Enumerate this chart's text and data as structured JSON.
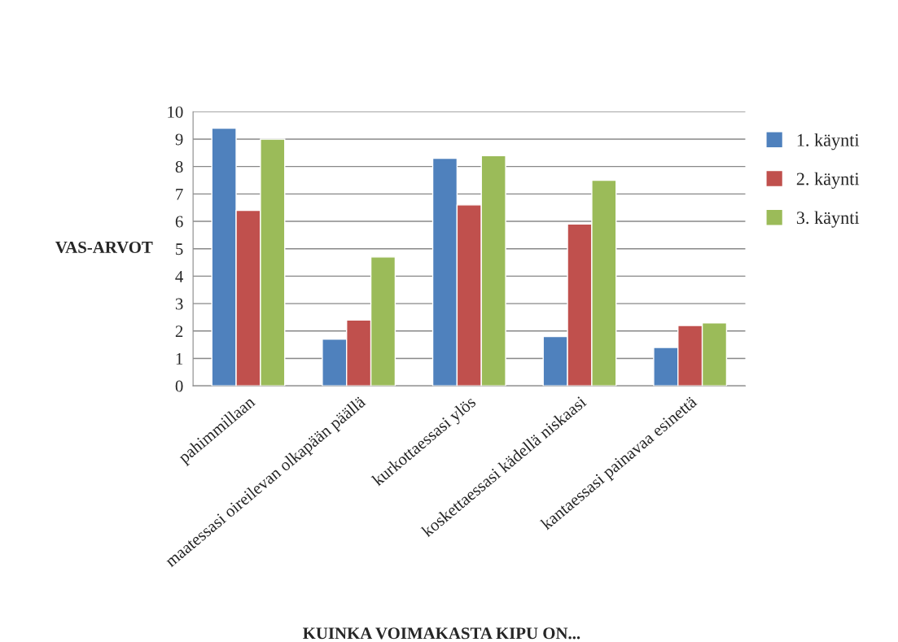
{
  "chart_data": {
    "type": "bar",
    "xlabel": "KUINKA VOIMAKASTA KIPU ON...",
    "ylabel": "VAS-ARVOT",
    "categories": [
      "pahimmillaan",
      "maatessasi oireilevan olkapään päällä",
      "kurkottaessasi ylös",
      "koskettaessasi kädellä niskaasi",
      "kantaessasi painavaa esinettä"
    ],
    "series": [
      {
        "name": "1. käynti",
        "color": "#4f81bd",
        "values": [
          9.4,
          1.7,
          8.3,
          1.8,
          1.4
        ]
      },
      {
        "name": "2. käynti",
        "color": "#c0504d",
        "values": [
          6.4,
          2.4,
          6.6,
          5.9,
          2.2
        ]
      },
      {
        "name": "3. käynti",
        "color": "#9bbb59",
        "values": [
          9.0,
          4.7,
          8.4,
          7.5,
          2.3
        ]
      }
    ],
    "ylim": [
      0,
      10
    ],
    "yticks": [
      0,
      1,
      2,
      3,
      4,
      5,
      6,
      7,
      8,
      9,
      10
    ],
    "grid": "y",
    "legend": "right"
  }
}
